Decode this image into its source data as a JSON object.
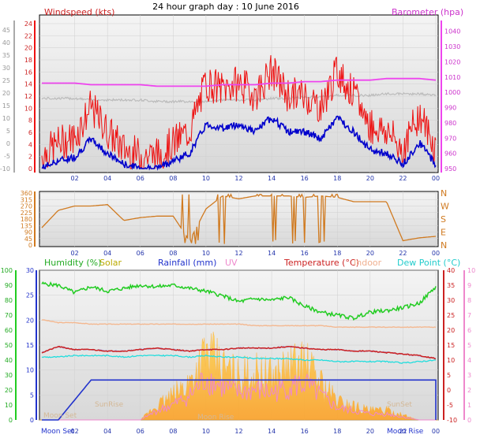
{
  "title": "24 hour graph day : 10 June 2016",
  "panel_wind": {
    "left_label": "Windspeed (kts)",
    "right_label": "Barometer (hpa)",
    "outer_ticks": [
      "45",
      "40",
      "35",
      "30",
      "25",
      "20",
      "15",
      "10",
      "5",
      "0",
      "-5",
      "-10"
    ],
    "left_ticks": [
      "24",
      "22",
      "20",
      "18",
      "16",
      "14",
      "12",
      "10",
      "8",
      "6",
      "4",
      "2",
      "0"
    ],
    "right_ticks": [
      "1040",
      "1030",
      "1020",
      "1010",
      "1000",
      "990",
      "980",
      "970",
      "960",
      "950"
    ]
  },
  "panel_dir": {
    "left_ticks": [
      "360",
      "315",
      "270",
      "225",
      "180",
      "135",
      "90",
      "45",
      "0"
    ],
    "right_ticks": [
      "N",
      "W",
      "S",
      "E",
      "N"
    ]
  },
  "panel_env": {
    "legend": {
      "humidity": "Humidity (%)",
      "solar": "Solar",
      "rainfall": "Rainfall (mm)",
      "uv": "UV",
      "temperature": "Temperature (°C)",
      "indoor": "Indoor",
      "dewpoint": "Dew Point (°C)"
    },
    "outer_ticks": [
      "100",
      "90",
      "80",
      "70",
      "60",
      "50",
      "40",
      "30",
      "20",
      "10",
      "0"
    ],
    "left_ticks": [
      "30",
      "25",
      "20",
      "15",
      "10",
      "5",
      "0"
    ],
    "right_temp_ticks": [
      "40",
      "35",
      "30",
      "25",
      "20",
      "15",
      "10",
      "5",
      "0",
      "-5",
      "-10"
    ],
    "uv_ticks": [
      "10",
      "9",
      "8",
      "7",
      "6",
      "5",
      "4",
      "3",
      "2",
      "1",
      "0"
    ],
    "annotations": {
      "moonset": "Moon Set",
      "sunrise": "SunRise",
      "moonrise": "Moon Rise",
      "sunset": "SunSet",
      "moonrise2": "Moon Rise"
    }
  },
  "x_ticks": [
    "02",
    "04",
    "06",
    "08",
    "10",
    "12",
    "14",
    "16",
    "18",
    "20",
    "22",
    "00"
  ],
  "colors": {
    "windspeed": "#ee1111",
    "windgust": "#ee1111",
    "windavg": "#0000cc",
    "barometer": "#ee44ee",
    "baro_alt": "#bbbbbb",
    "direction": "#d07a20",
    "humidity": "#22cc22",
    "solar": "#ffb030",
    "rainfall": "#2233cc",
    "uv": "#ee88cc",
    "temperature": "#cc2222",
    "indoor": "#f4b890",
    "dewpoint": "#22dddd",
    "title_left": "#cc2222",
    "title_right": "#cc33cc"
  },
  "chart_data": [
    {
      "type": "line",
      "title": "Windspeed / Barometer",
      "x": [
        "00",
        "01",
        "02",
        "03",
        "04",
        "05",
        "06",
        "07",
        "08",
        "09",
        "10",
        "11",
        "12",
        "13",
        "14",
        "15",
        "16",
        "17",
        "18",
        "19",
        "20",
        "21",
        "22",
        "23",
        "24"
      ],
      "series": [
        {
          "name": "Windspeed (kts)",
          "values": [
            1,
            3,
            4,
            9,
            5,
            2,
            1,
            1,
            3,
            5,
            13,
            12,
            13,
            11,
            15,
            11,
            11,
            9,
            15,
            11,
            6,
            5,
            2,
            8,
            2
          ]
        },
        {
          "name": "Barometer (hpa)",
          "values": [
            1006,
            1006,
            1006,
            1005,
            1005,
            1005,
            1005,
            1004,
            1004,
            1004,
            1004,
            1005,
            1005,
            1005,
            1006,
            1006,
            1007,
            1007,
            1008,
            1008,
            1008,
            1009,
            1009,
            1009,
            1008
          ]
        }
      ],
      "ylim": [
        0,
        24
      ],
      "y2lim": [
        950,
        1045
      ]
    },
    {
      "type": "line",
      "title": "Wind direction",
      "x": [
        "00",
        "01",
        "02",
        "03",
        "04",
        "05",
        "06",
        "07",
        "08",
        "09",
        "10",
        "11",
        "12",
        "13",
        "14",
        "15",
        "16",
        "17",
        "18",
        "19",
        "20",
        "21",
        "22",
        "23",
        "24"
      ],
      "series": [
        {
          "name": "Direction",
          "values": [
            120,
            240,
            270,
            270,
            280,
            170,
            190,
            200,
            200,
            30,
            250,
            340,
            320,
            340,
            340,
            340,
            330,
            340,
            330,
            300,
            300,
            300,
            30,
            50,
            60
          ]
        }
      ],
      "ylim": [
        0,
        360
      ]
    },
    {
      "type": "line",
      "title": "Humidity / Temperature / Rainfall",
      "x": [
        "00",
        "01",
        "02",
        "03",
        "04",
        "05",
        "06",
        "07",
        "08",
        "09",
        "10",
        "11",
        "12",
        "13",
        "14",
        "15",
        "16",
        "17",
        "18",
        "19",
        "20",
        "21",
        "22",
        "23",
        "24"
      ],
      "series": [
        {
          "name": "Humidity (%)",
          "values": [
            91,
            90,
            85,
            89,
            86,
            88,
            90,
            89,
            90,
            88,
            86,
            83,
            79,
            81,
            80,
            82,
            76,
            72,
            70,
            68,
            72,
            73,
            75,
            78,
            89
          ]
        },
        {
          "name": "Temperature (°C)",
          "values": [
            12.5,
            14.5,
            13.5,
            13.5,
            13.0,
            13.0,
            13.5,
            14.0,
            13.5,
            13.0,
            13.5,
            13.5,
            14.0,
            14.0,
            14.0,
            14.5,
            14.0,
            13.5,
            13.5,
            13.0,
            13.0,
            12.5,
            12.0,
            11.5,
            10.5
          ]
        },
        {
          "name": "Dew Point (°C)",
          "values": [
            11,
            11,
            11.5,
            11.5,
            11.5,
            11,
            11.5,
            11.5,
            11.5,
            11,
            11.5,
            11,
            11,
            10.5,
            10.5,
            10.5,
            10,
            10,
            9.5,
            9.5,
            9.5,
            9.5,
            9,
            9.5,
            10
          ]
        },
        {
          "name": "Indoor",
          "values": [
            23.5,
            22.5,
            22.5,
            22,
            22,
            22,
            22,
            22,
            22,
            22,
            22,
            22,
            22,
            21.5,
            21.5,
            21.5,
            21.5,
            21.5,
            21,
            21,
            21,
            21,
            21,
            21,
            21
          ]
        },
        {
          "name": "Rainfall (mm)",
          "values": [
            0,
            0,
            4,
            8,
            8,
            8,
            8,
            8,
            8,
            8,
            8,
            8,
            8,
            8,
            8,
            8,
            8,
            8,
            8,
            8,
            8,
            8,
            8,
            8,
            8
          ]
        },
        {
          "name": "Solar",
          "values": [
            0,
            0,
            0,
            0,
            0,
            0,
            0,
            3,
            5,
            8,
            14,
            11,
            9,
            10,
            9,
            11,
            12,
            8,
            4,
            3,
            2,
            2,
            1,
            0,
            0
          ]
        }
      ],
      "ylim": [
        0,
        30
      ]
    }
  ]
}
